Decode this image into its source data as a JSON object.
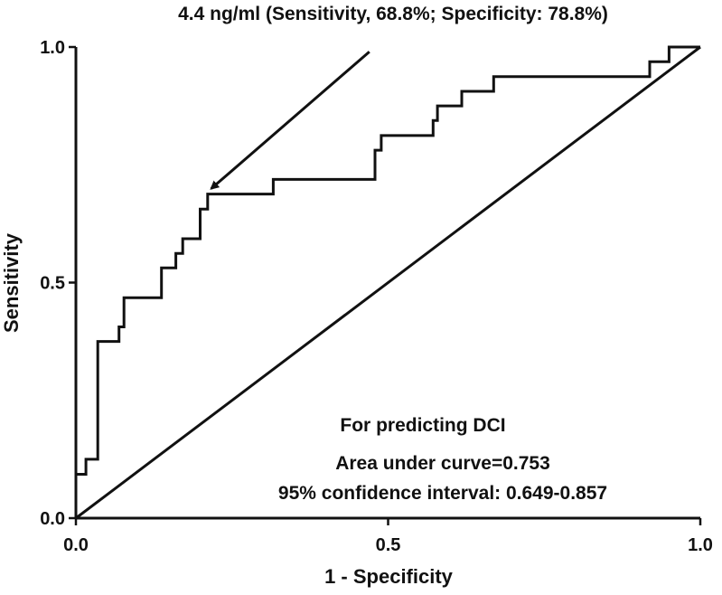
{
  "chart_data": {
    "type": "line",
    "title": "4.4 ng/ml (Sensitivity,  68.8%; Specificity: 78.8%)",
    "xlabel": "1 - Specificity",
    "ylabel": "Sensitivity",
    "xlim": [
      0,
      1
    ],
    "ylim": [
      0,
      1
    ],
    "xticks": [
      "0.0",
      "0.5",
      "1.0"
    ],
    "yticks": [
      "0.0",
      "0.5",
      "1.0"
    ],
    "grid": false,
    "series": [
      {
        "name": "ROC curve",
        "style": "step",
        "x": [
          0.0,
          0.0,
          0.016,
          0.016,
          0.035,
          0.035,
          0.069,
          0.069,
          0.077,
          0.077,
          0.137,
          0.137,
          0.16,
          0.16,
          0.171,
          0.171,
          0.199,
          0.199,
          0.211,
          0.211,
          0.316,
          0.316,
          0.479,
          0.479,
          0.489,
          0.489,
          0.51,
          0.51,
          0.572,
          0.572,
          0.579,
          0.579,
          0.618,
          0.618,
          0.669,
          0.669,
          0.919,
          0.919,
          0.95,
          0.95,
          1.0
        ],
        "y": [
          0.0,
          0.093,
          0.093,
          0.125,
          0.125,
          0.375,
          0.375,
          0.406,
          0.406,
          0.468,
          0.468,
          0.531,
          0.531,
          0.562,
          0.562,
          0.593,
          0.593,
          0.656,
          0.656,
          0.688,
          0.688,
          0.719,
          0.719,
          0.781,
          0.781,
          0.812,
          0.812,
          0.812,
          0.812,
          0.844,
          0.844,
          0.875,
          0.875,
          0.906,
          0.906,
          0.937,
          0.937,
          0.969,
          0.969,
          1.0,
          1.0
        ]
      },
      {
        "name": "Reference line",
        "style": "line",
        "x": [
          0.0,
          1.0
        ],
        "y": [
          0.0,
          1.0
        ]
      }
    ],
    "annotations": {
      "arrow_target": {
        "x": 0.211,
        "y": 0.688
      },
      "arrow_start": {
        "x": 0.47,
        "y": 0.99
      },
      "heading": "For predicting DCI",
      "auc": "Area under curve=0.753",
      "ci": "95% confidence interval: 0.649-0.857"
    }
  }
}
